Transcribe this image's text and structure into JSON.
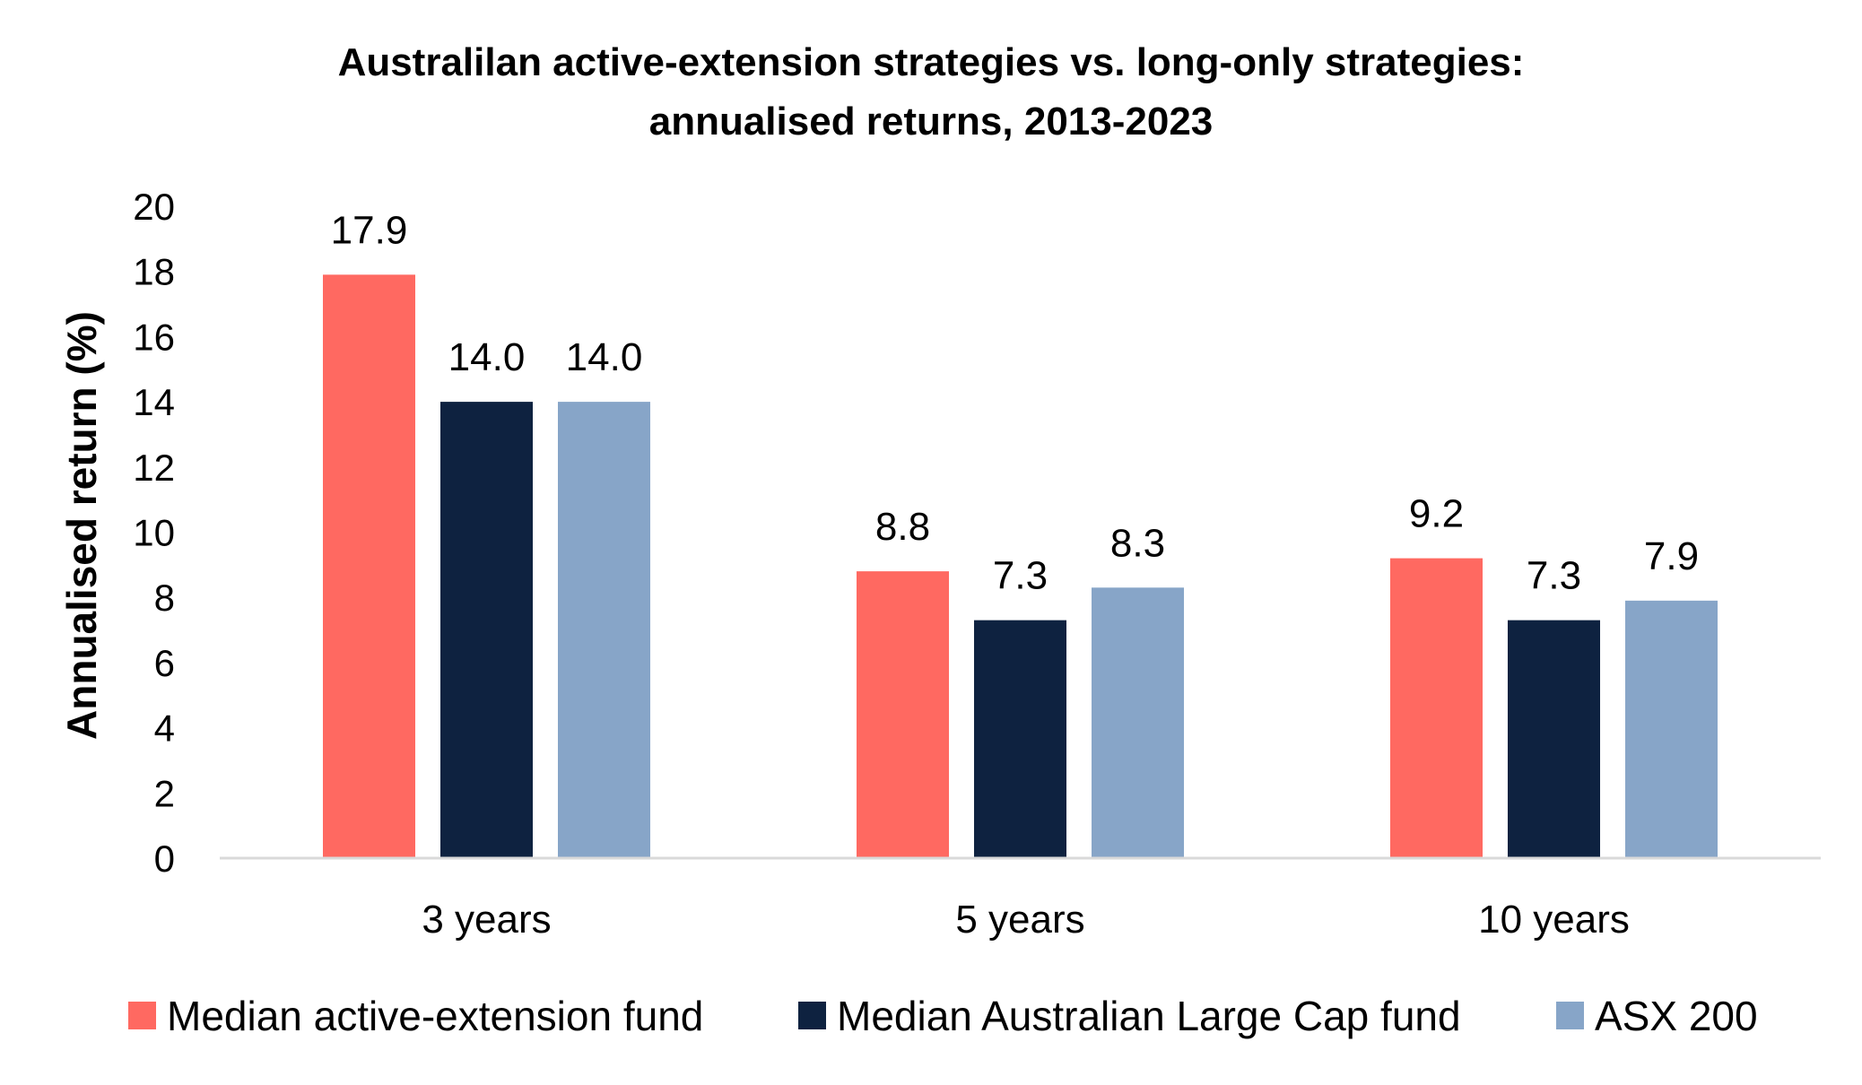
{
  "chart_data": {
    "type": "bar",
    "title": "Australilan active-extension strategies vs. long-only strategies:",
    "subtitle": "annualised returns, 2013-2023",
    "xlabel": "",
    "ylabel": "Annualised return (%)",
    "ylim": [
      0,
      20
    ],
    "yticks": [
      "0",
      "2",
      "4",
      "6",
      "8",
      "10",
      "12",
      "14",
      "16",
      "18",
      "20"
    ],
    "categories": [
      "3 years",
      "5 years",
      "10 years"
    ],
    "series": [
      {
        "name": "Median active-extension fund",
        "color": "#ff6961",
        "values": [
          17.9,
          8.8,
          9.2
        ],
        "labels": [
          "17.9",
          "8.8",
          "9.2"
        ]
      },
      {
        "name": "Median Australian Large Cap fund",
        "color": "#0e2240",
        "values": [
          14.0,
          7.3,
          7.3
        ],
        "labels": [
          "14.0",
          "7.3",
          "7.3"
        ]
      },
      {
        "name": "ASX 200",
        "color": "#87a5c8",
        "values": [
          14.0,
          8.3,
          7.9
        ],
        "labels": [
          "14.0",
          "8.3",
          "7.9"
        ]
      }
    ],
    "grid": false,
    "legend_position": "bottom"
  }
}
